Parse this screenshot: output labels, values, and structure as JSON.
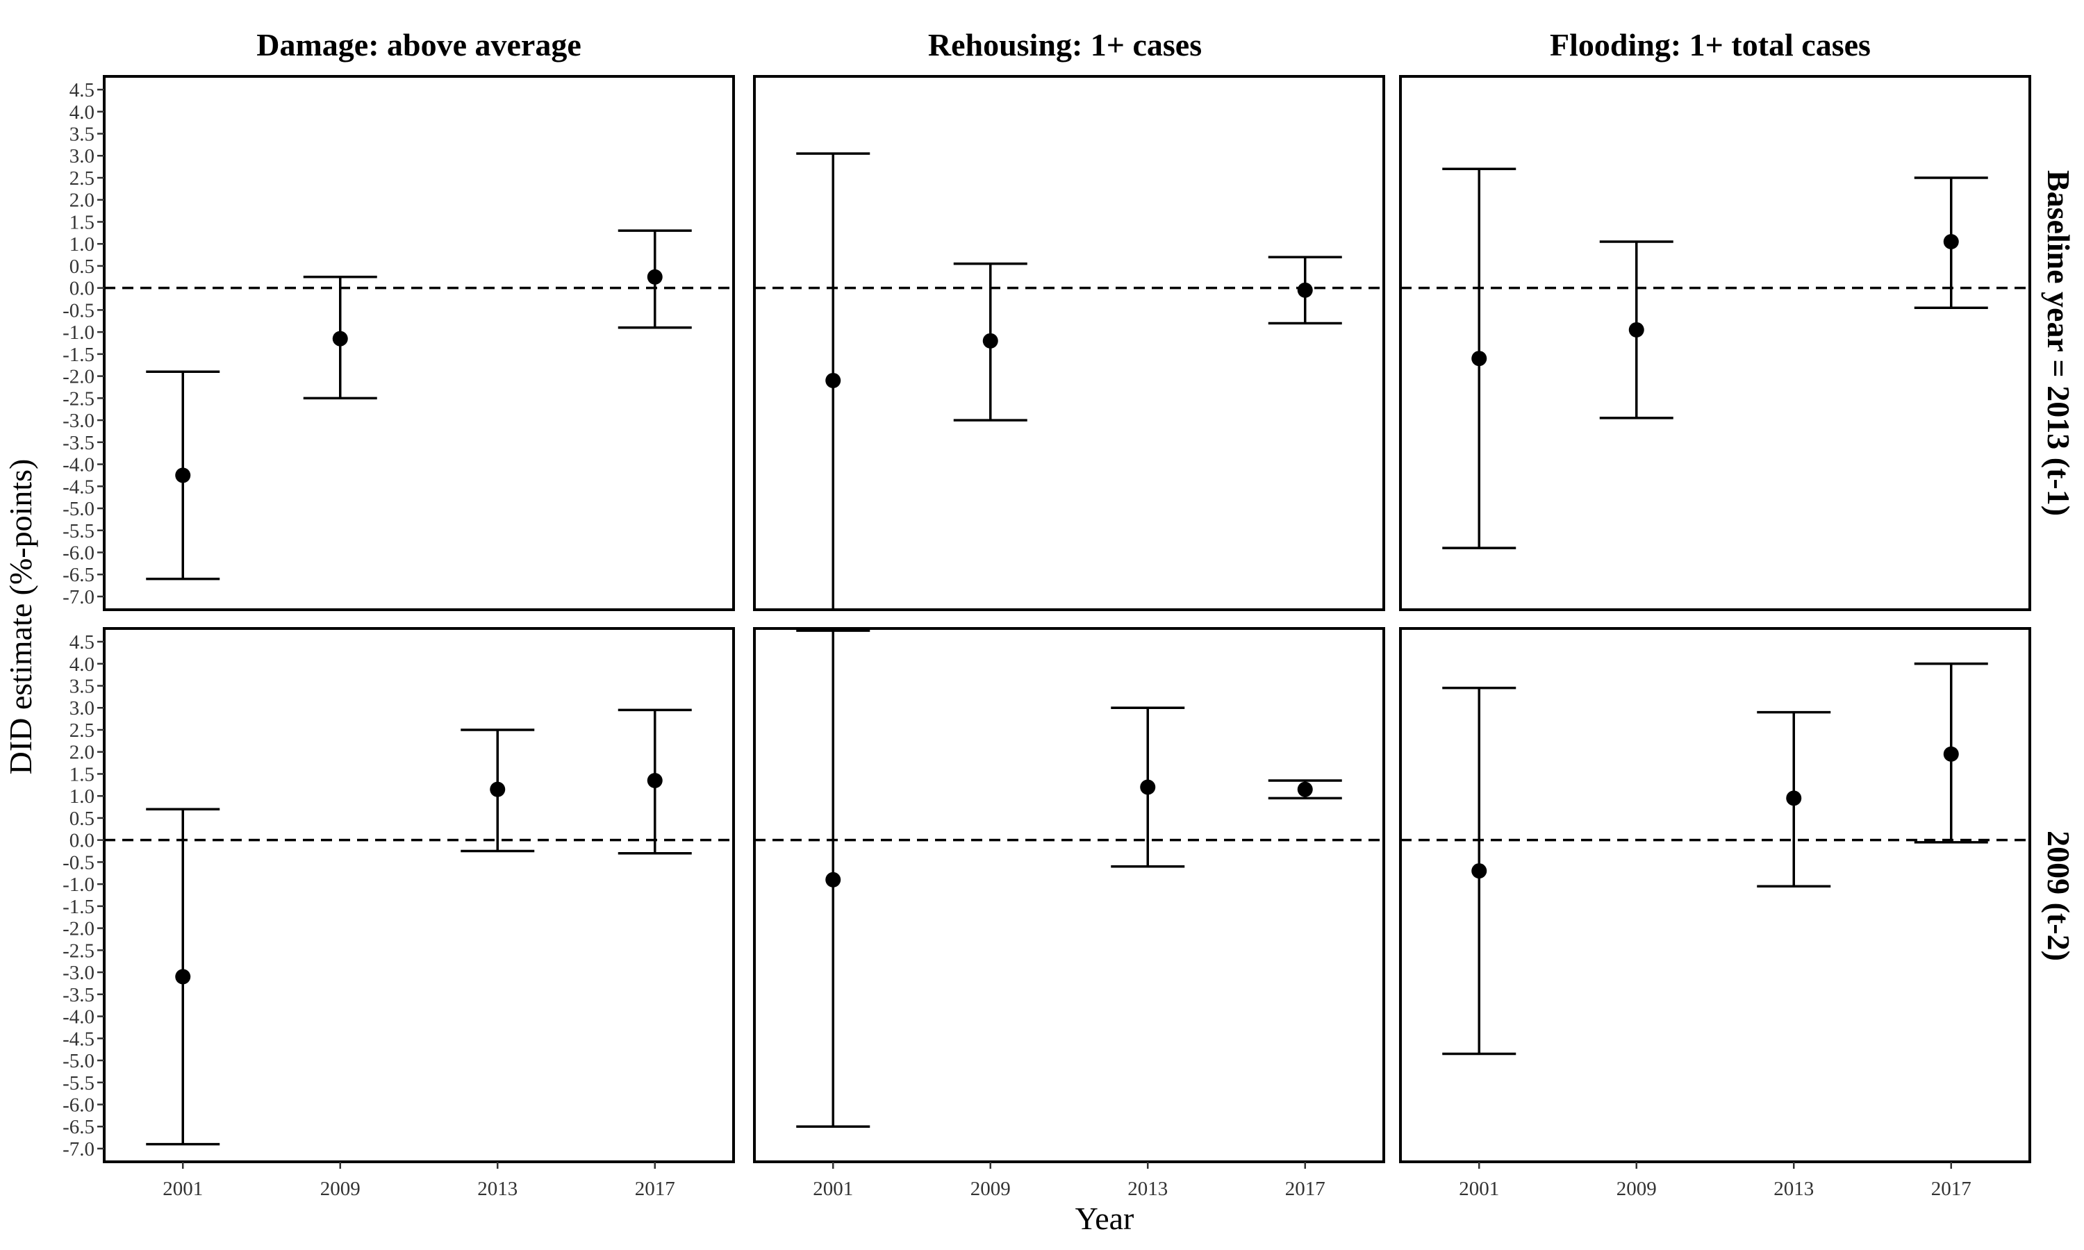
{
  "chart_data": {
    "type": "scatter",
    "ylabel": "DID estimate (%-points)",
    "xlabel": "Year",
    "x_categories": [
      "2001",
      "2009",
      "2013",
      "2017"
    ],
    "y_ticks": [
      "-7.0",
      "-6.5",
      "-6.0",
      "-5.5",
      "-5.0",
      "-4.5",
      "-4.0",
      "-3.5",
      "-3.0",
      "-2.5",
      "-2.0",
      "-1.5",
      "-1.0",
      "-0.5",
      "0.0",
      "0.5",
      "1.0",
      "1.5",
      "2.0",
      "2.5",
      "3.0",
      "3.5",
      "4.0",
      "4.5"
    ],
    "ylim": [
      -7.3,
      4.8
    ],
    "column_titles": [
      "Damage: above average",
      "Rehousing: 1+ cases",
      "Flooding: 1+ total cases"
    ],
    "row_titles": [
      "Baseline year = 2013 (t-1)",
      "2009 (t-2)"
    ],
    "reference_line": 0,
    "panels": [
      {
        "row": 0,
        "col": 0,
        "points": [
          {
            "x": "2001",
            "y": -4.25,
            "lo": -6.6,
            "hi": -1.9
          },
          {
            "x": "2009",
            "y": -1.15,
            "lo": -2.5,
            "hi": 0.25
          },
          {
            "x": "2017",
            "y": 0.25,
            "lo": -0.9,
            "hi": 1.3
          }
        ]
      },
      {
        "row": 0,
        "col": 1,
        "points": [
          {
            "x": "2001",
            "y": -2.1,
            "lo": -7.3,
            "hi": 3.05
          },
          {
            "x": "2009",
            "y": -1.2,
            "lo": -3.0,
            "hi": 0.55
          },
          {
            "x": "2017",
            "y": -0.05,
            "lo": -0.8,
            "hi": 0.7
          }
        ]
      },
      {
        "row": 0,
        "col": 2,
        "points": [
          {
            "x": "2001",
            "y": -1.6,
            "lo": -5.9,
            "hi": 2.7
          },
          {
            "x": "2009",
            "y": -0.95,
            "lo": -2.95,
            "hi": 1.05
          },
          {
            "x": "2017",
            "y": 1.05,
            "lo": -0.45,
            "hi": 2.5
          }
        ]
      },
      {
        "row": 1,
        "col": 0,
        "points": [
          {
            "x": "2001",
            "y": -3.1,
            "lo": -6.9,
            "hi": 0.7
          },
          {
            "x": "2013",
            "y": 1.15,
            "lo": -0.25,
            "hi": 2.5
          },
          {
            "x": "2017",
            "y": 1.35,
            "lo": -0.3,
            "hi": 2.95
          }
        ]
      },
      {
        "row": 1,
        "col": 1,
        "points": [
          {
            "x": "2001",
            "y": -0.9,
            "lo": -6.5,
            "hi": 4.75
          },
          {
            "x": "2013",
            "y": 1.2,
            "lo": -0.6,
            "hi": 3.0
          },
          {
            "x": "2017",
            "y": 1.15,
            "lo": 0.95,
            "hi": 1.35
          }
        ]
      },
      {
        "row": 1,
        "col": 2,
        "points": [
          {
            "x": "2001",
            "y": -0.7,
            "lo": -4.85,
            "hi": 3.45
          },
          {
            "x": "2013",
            "y": 0.95,
            "lo": -1.05,
            "hi": 2.9
          },
          {
            "x": "2017",
            "y": 1.95,
            "lo": -0.05,
            "hi": 4.0
          }
        ]
      }
    ]
  }
}
